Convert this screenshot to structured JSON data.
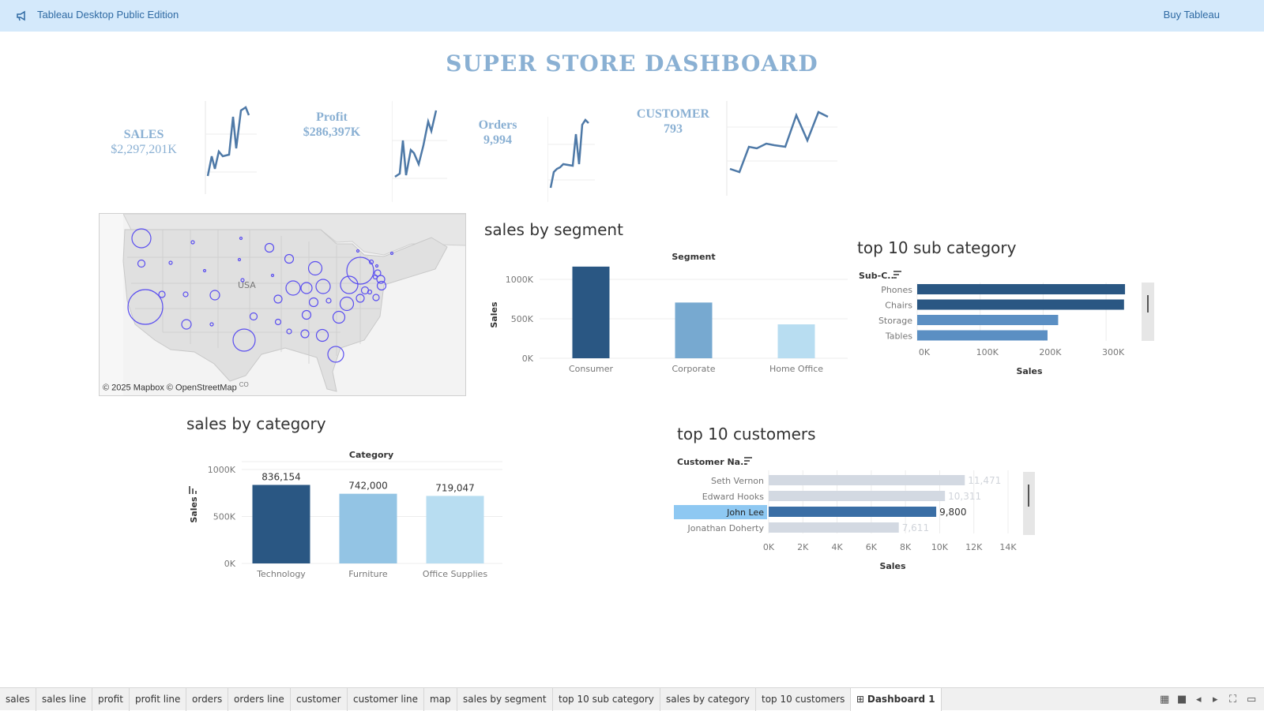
{
  "topbar": {
    "app_title": "Tableau Desktop Public Edition",
    "buy_label": "Buy Tableau"
  },
  "dashboard_title": "SUPER STORE DASHBOARD",
  "kpis": [
    {
      "label": "SALES",
      "value": "$2,297,201K"
    },
    {
      "label": "Profit",
      "value": "$286,397K"
    },
    {
      "label": "Orders",
      "value": "9,994"
    },
    {
      "label": "CUSTOMER",
      "value": "793"
    }
  ],
  "map": {
    "usa_label": "USA",
    "credit": "© 2025 Mapbox © OpenStreetMap",
    "credit_sup": "CO"
  },
  "segment_chart": {
    "title": "sales by segment",
    "header": "Segment",
    "ylabel": "Sales",
    "yticks": [
      "0K",
      "500K",
      "1000K"
    ],
    "categories": [
      "Consumer",
      "Corporate",
      "Home Office"
    ],
    "values": [
      1161401,
      706146,
      429653
    ],
    "colors": [
      "#2a5783",
      "#77a9d0",
      "#b8ddf1"
    ],
    "ylim": [
      0,
      1200000
    ]
  },
  "subcat_chart": {
    "title": "top 10 sub category",
    "header": "Sub-C..",
    "xlabel": "Sales",
    "xticks": [
      "0K",
      "100K",
      "200K",
      "300K"
    ],
    "categories": [
      "Phones",
      "Chairs",
      "Storage",
      "Tables"
    ],
    "values": [
      330007,
      328449,
      223844,
      206966
    ],
    "colors": [
      "#2a5783",
      "#2a5783",
      "#5b8fc3",
      "#5b8fc3"
    ],
    "xlim": [
      0,
      350000
    ]
  },
  "category_chart": {
    "title": "sales by category",
    "header": "Category",
    "ylabel": "Sales",
    "yticks": [
      "0K",
      "500K",
      "1000K"
    ],
    "categories": [
      "Technology",
      "Furniture",
      "Office Supplies"
    ],
    "values": [
      836154,
      742000,
      719047
    ],
    "labels": [
      "836,154",
      "742,000",
      "719,047"
    ],
    "colors": [
      "#2a5783",
      "#93c4e4",
      "#b8ddf1"
    ],
    "ylim": [
      0,
      1000000
    ]
  },
  "customers_chart": {
    "title": "top 10 customers",
    "header": "Customer Na..",
    "xlabel": "Sales",
    "xticks": [
      "0K",
      "2K",
      "4K",
      "6K",
      "8K",
      "10K",
      "12K",
      "14K"
    ],
    "categories": [
      "Seth Vernon",
      "Edward Hooks",
      "John Lee",
      "Jonathan Doherty"
    ],
    "values": [
      11471,
      10311,
      9800,
      7611
    ],
    "labels": [
      "11,471",
      "10,311",
      "9,800",
      "7,611"
    ],
    "highlighted": "John Lee",
    "xlim": [
      0,
      14000
    ]
  },
  "tabs": [
    "sales",
    "sales line",
    "profit",
    "profit line",
    "orders",
    "orders line",
    "customer",
    "customer line",
    "map",
    "sales by segment",
    "top 10 sub category",
    "sales by category",
    "top 10 customers",
    "Dashboard 1"
  ],
  "active_tab": "Dashboard 1",
  "chart_data": [
    {
      "type": "bar",
      "title": "sales by segment",
      "xlabel": "Segment",
      "ylabel": "Sales",
      "categories": [
        "Consumer",
        "Corporate",
        "Home Office"
      ],
      "values": [
        1161401,
        706146,
        429653
      ],
      "ylim": [
        0,
        1200000
      ]
    },
    {
      "type": "bar",
      "title": "top 10 sub category",
      "xlabel": "Sales",
      "ylabel": "Sub-C..",
      "categories": [
        "Phones",
        "Chairs",
        "Storage",
        "Tables"
      ],
      "values": [
        330007,
        328449,
        223844,
        206966
      ]
    },
    {
      "type": "bar",
      "title": "sales by category",
      "xlabel": "Category",
      "ylabel": "Sales",
      "categories": [
        "Technology",
        "Furniture",
        "Office Supplies"
      ],
      "values": [
        836154,
        742000,
        719047
      ],
      "ylim": [
        0,
        1000000
      ]
    },
    {
      "type": "bar",
      "title": "top 10 customers",
      "xlabel": "Sales",
      "ylabel": "Customer Na..",
      "categories": [
        "Seth Vernon",
        "Edward Hooks",
        "John Lee",
        "Jonathan Doherty"
      ],
      "values": [
        11471,
        10311,
        9800,
        7611
      ],
      "xlim": [
        0,
        14000
      ]
    }
  ]
}
